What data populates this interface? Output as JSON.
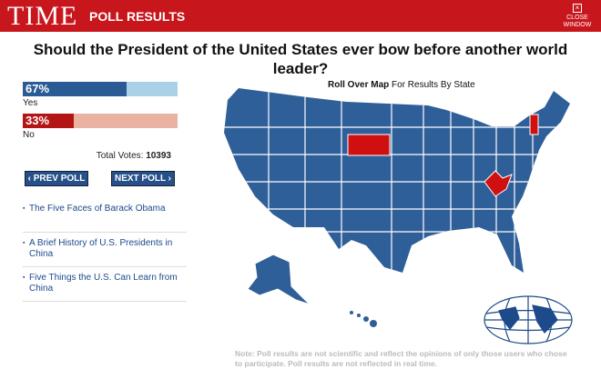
{
  "header": {
    "logo": "TIME",
    "title": "POLL RESULTS",
    "close": [
      "CLOSE",
      "WINDOW"
    ]
  },
  "question": "Should the President of the United States ever bow before another world leader?",
  "results": [
    {
      "label": "Yes",
      "percent": 67,
      "percent_label": "67%"
    },
    {
      "label": "No",
      "percent": 33,
      "percent_label": "33%"
    }
  ],
  "total_votes_label": "Total Votes:",
  "total_votes": 10393,
  "nav": {
    "prev": "‹ PREV POLL",
    "next": "NEXT POLL ›"
  },
  "links": [
    "The Five Faces of Barack Obama",
    "A Brief History of U.S. Presidents in China",
    "Five Things the U.S. Can Learn from China"
  ],
  "map_caption": {
    "bold": "Roll Over Map",
    "rest": "For Results By State"
  },
  "note": "Note: Poll results are not scientific and reflect the opinions of only those users who chose to participate. Poll results are not reflected in real time."
}
